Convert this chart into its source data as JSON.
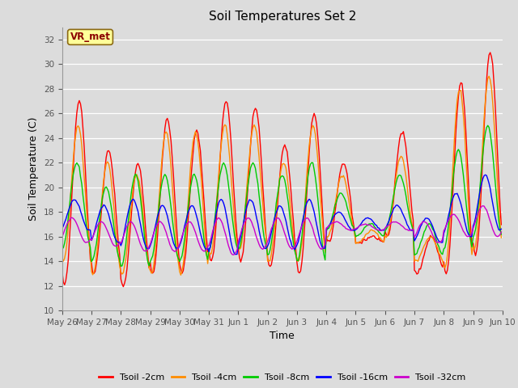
{
  "title": "Soil Temperatures Set 2",
  "xlabel": "Time",
  "ylabel": "Soil Temperature (C)",
  "ylim": [
    10,
    33
  ],
  "yticks": [
    10,
    12,
    14,
    16,
    18,
    20,
    22,
    24,
    26,
    28,
    30,
    32
  ],
  "annotation_text": "VR_met",
  "annotation_color": "#8B0000",
  "annotation_bg": "#FFFF99",
  "annotation_border": "#8B6914",
  "bg_color": "#D8D8D8",
  "series_colors": {
    "Tsoil -2cm": "#FF0000",
    "Tsoil -4cm": "#FF8C00",
    "Tsoil -8cm": "#00CC00",
    "Tsoil -16cm": "#0000FF",
    "Tsoil -32cm": "#CC00CC"
  },
  "x_dates": [
    "May 26",
    "May 27",
    "May 28",
    "May 29",
    "May 30",
    "May 31",
    "Jun 1",
    "Jun 2",
    "Jun 3",
    "Jun 4",
    "Jun 5",
    "Jun 6",
    "Jun 7",
    "Jun 8",
    "Jun 9",
    "Jun 10"
  ]
}
